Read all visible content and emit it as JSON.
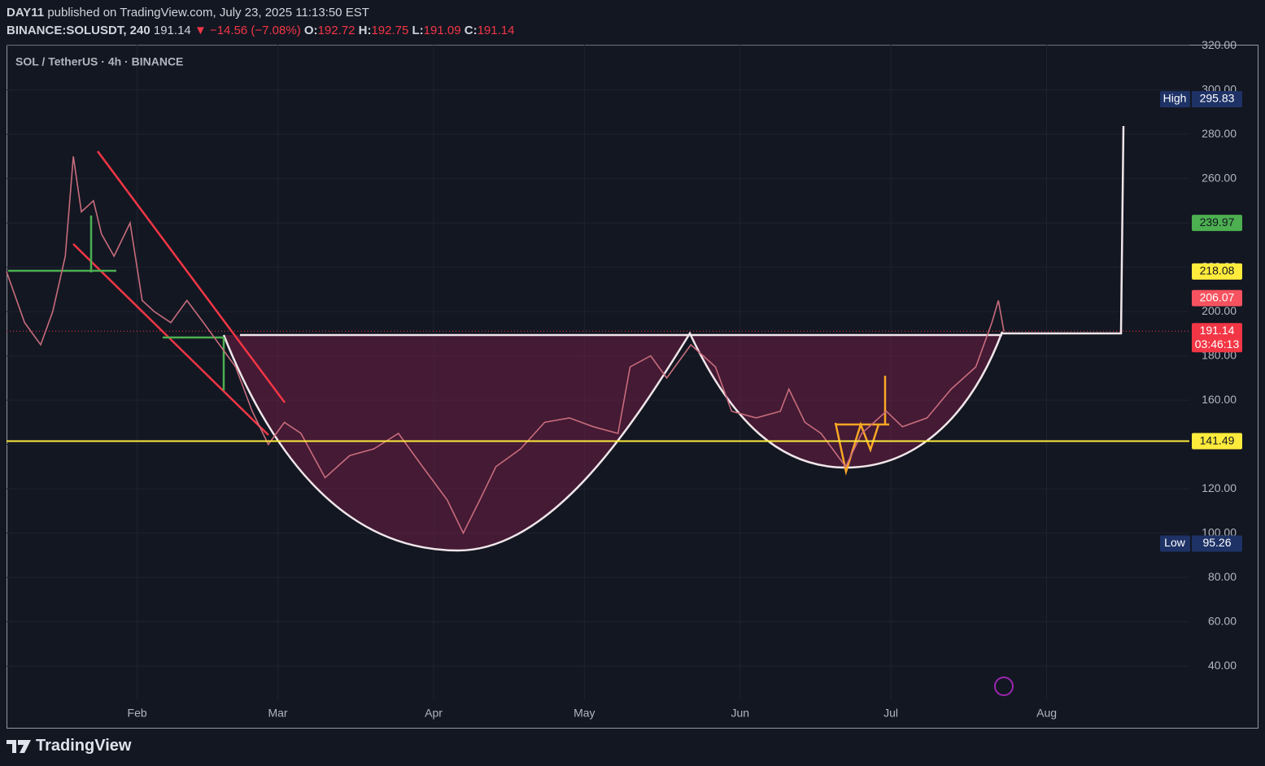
{
  "header": {
    "publisher": "DAY11",
    "published": "published on TradingView.com, July 23, 2025 11:13:50 EST",
    "symbol": "BINANCE:SOLUSDT, 240",
    "last": "191.14",
    "change": "▼ −14.56 (−7.08%)",
    "ohlc": [
      {
        "label": "O:",
        "value": "192.72"
      },
      {
        "label": "H:",
        "value": "192.75"
      },
      {
        "label": "L:",
        "value": "191.09"
      },
      {
        "label": "C:",
        "value": "191.14"
      }
    ]
  },
  "chart_data": {
    "type": "line",
    "legend": "SOL / TetherUS · 4h · BINANCE",
    "color": "#c86c7c",
    "x": [
      0,
      3.6,
      6.8,
      9.2,
      11.7,
      13.3,
      14.9,
      17.3,
      18.9,
      21.4,
      24.6,
      27,
      29.4,
      32.7,
      35.9,
      39.2,
      42.4,
      45.6,
      48.9,
      52.1,
      55.3,
      58.6,
      63.4,
      68.3,
      73.1,
      78,
      82.8,
      87.7,
      90.9,
      94.2,
      97.4,
      102.3,
      107.1,
      112,
      116.8,
      121.7,
      124.1,
      128.2,
      131.4,
      136.2,
      141.1,
      144.3,
      149.2,
      154,
      155.7,
      158.9,
      162.1,
      167,
      170.2,
      175.1,
      178.3,
      183.2,
      188,
      192.9,
      196.1,
      197.4,
      198.5
    ],
    "values": [
      218,
      195,
      185,
      200,
      225,
      270,
      245,
      250,
      235,
      225,
      240,
      205,
      200,
      195,
      205,
      195,
      185,
      175,
      155,
      140,
      150,
      145,
      125,
      135,
      138,
      145,
      130,
      115,
      100,
      115,
      130,
      138,
      150,
      152,
      148,
      145,
      175,
      180,
      170,
      185,
      175,
      155,
      152,
      155,
      165,
      150,
      145,
      130,
      145,
      155,
      148,
      152,
      165,
      175,
      195,
      205,
      191
    ],
    "xlim": [
      0,
      249
    ],
    "xticks": [
      {
        "value": 26,
        "label": "Feb"
      },
      {
        "value": 54,
        "label": "Mar"
      },
      {
        "value": 85,
        "label": "Apr"
      },
      {
        "value": 115,
        "label": "May"
      },
      {
        "value": 146,
        "label": "Jun"
      },
      {
        "value": 176,
        "label": "Jul"
      },
      {
        "value": 207,
        "label": "Aug"
      }
    ],
    "ylim": [
      25,
      320.4
    ],
    "yticks": [
      {
        "value": 40,
        "label": "40.00"
      },
      {
        "value": 60,
        "label": "60.00"
      },
      {
        "value": 80,
        "label": "80.00"
      },
      {
        "value": 100,
        "label": "100.00"
      },
      {
        "value": 120,
        "label": "120.00"
      },
      {
        "value": 140,
        "label": "140.00"
      },
      {
        "value": 160,
        "label": "160.00"
      },
      {
        "value": 180,
        "label": "180.00"
      },
      {
        "value": 200,
        "label": "200.00"
      },
      {
        "value": 220,
        "label": "220.00"
      },
      {
        "value": 240,
        "label": "240.00"
      },
      {
        "value": 260,
        "label": "260.00"
      },
      {
        "value": 280,
        "label": "280.00"
      },
      {
        "value": 300,
        "label": "300.00"
      },
      {
        "value": 320,
        "label": "320.00"
      }
    ],
    "grid": true,
    "price_labels": [
      {
        "label": "High",
        "value": 295.83,
        "color": "#1e3266",
        "text_color": "#ffffff"
      },
      {
        "value": 239.97,
        "color": "#4caf50",
        "text_color": "#131722"
      },
      {
        "value": 218.08,
        "color": "#ffeb3b",
        "text_color": "#131722"
      },
      {
        "value": 206.07,
        "color": "#f7525f",
        "text_color": "#ffffff"
      },
      {
        "value": 191.14,
        "color": "#f23645",
        "text_color": "#ffffff",
        "countdown": "03:46:13",
        "line": "dotted"
      },
      {
        "value": 141.49,
        "color": "#ffeb3b",
        "text_color": "#131722",
        "line": "solid"
      },
      {
        "label": "Low",
        "value": 95.26,
        "color": "#1e3266",
        "text_color": "#ffffff"
      }
    ]
  },
  "footer": {
    "brand": "TradingView"
  }
}
